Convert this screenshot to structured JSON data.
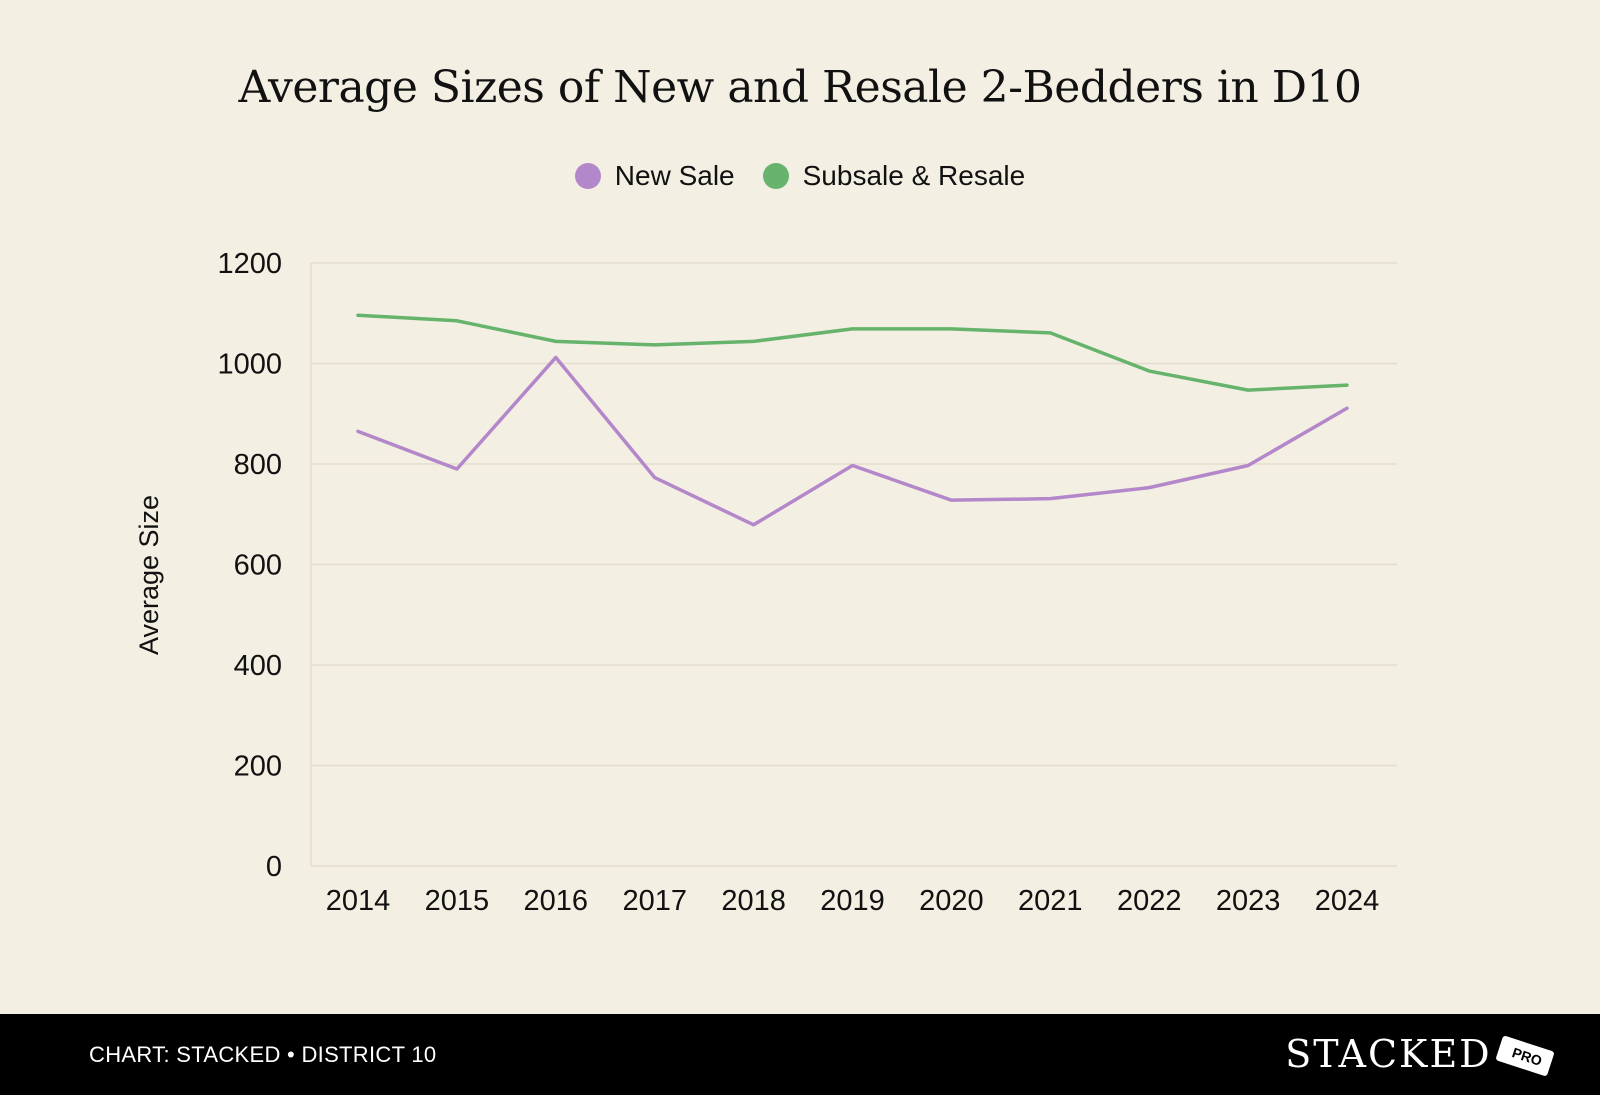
{
  "chart_data": {
    "type": "line",
    "title": "Average Sizes of New and Resale 2-Bedders in D10",
    "xlabel": "",
    "ylabel": "Average Size",
    "ylim": [
      0,
      1200
    ],
    "yticks": [
      0,
      200,
      400,
      600,
      800,
      1000,
      1200
    ],
    "grid": true,
    "legend_position": "top-center",
    "categories": [
      "2014",
      "2015",
      "2016",
      "2017",
      "2018",
      "2019",
      "2020",
      "2021",
      "2022",
      "2023",
      "2024"
    ],
    "series": [
      {
        "name": "New Sale",
        "color": "#b387c9",
        "values": [
          865,
          790,
          1012,
          773,
          679,
          797,
          728,
          731,
          753,
          797,
          911
        ]
      },
      {
        "name": "Subsale & Resale",
        "color": "#66b36b",
        "values": [
          1096,
          1085,
          1044,
          1037,
          1044,
          1069,
          1069,
          1061,
          985,
          947,
          957
        ]
      }
    ]
  },
  "footer": {
    "source": "CHART: STACKED • DISTRICT 10",
    "brand": "STACKED",
    "badge": "PRO"
  }
}
